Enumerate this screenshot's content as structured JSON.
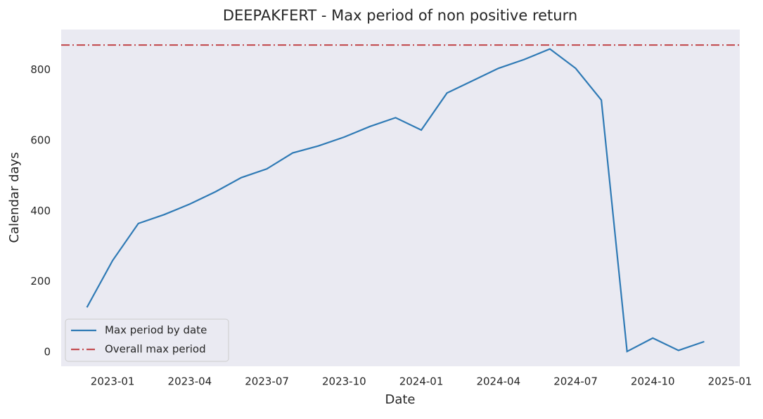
{
  "chart_data": {
    "type": "line",
    "title": "DEEPAKFERT - Max period of non positive return",
    "x_label": "Date",
    "y_label": "Calendar days",
    "x": [
      "2022-12",
      "2023-01",
      "2023-02",
      "2023-03",
      "2023-04",
      "2023-05",
      "2023-06",
      "2023-07",
      "2023-08",
      "2023-09",
      "2023-10",
      "2023-11",
      "2023-12",
      "2024-01",
      "2024-02",
      "2024-03",
      "2024-04",
      "2024-05",
      "2024-06",
      "2024-07",
      "2024-08",
      "2024-09",
      "2024-10",
      "2024-11",
      "2024-12"
    ],
    "series": [
      {
        "name": "Max period by date",
        "color": "#2f7ab5",
        "values": [
          127,
          260,
          365,
          390,
          420,
          455,
          495,
          520,
          565,
          585,
          610,
          640,
          665,
          630,
          735,
          770,
          805,
          830,
          860,
          805,
          715,
          2,
          40,
          5,
          30
        ]
      }
    ],
    "hline": {
      "name": "Overall max period",
      "value": 871,
      "color": "#c44e52"
    },
    "xlim": [
      "2022-11",
      "2025-01"
    ],
    "xticks": [
      "2023-01",
      "2023-04",
      "2023-07",
      "2023-10",
      "2024-01",
      "2024-04",
      "2024-07",
      "2024-10",
      "2025-01"
    ],
    "ylim": [
      -40,
      915
    ],
    "yticks": [
      0,
      200,
      400,
      600,
      800
    ],
    "grid": false,
    "legend": "lower left"
  }
}
